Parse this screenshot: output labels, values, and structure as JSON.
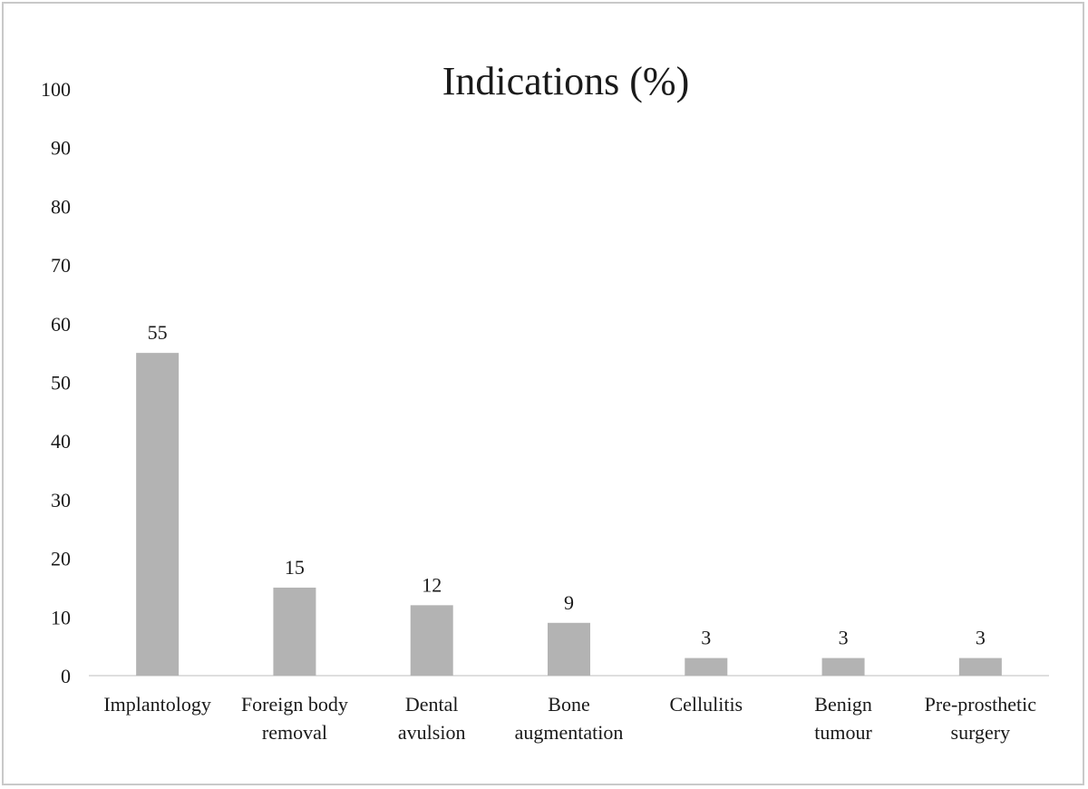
{
  "chart_data": {
    "type": "bar",
    "title": "Indications (%)",
    "xlabel": "",
    "ylabel": "",
    "ylim": [
      0,
      100
    ],
    "yticks": [
      0,
      10,
      20,
      30,
      40,
      50,
      60,
      70,
      80,
      90,
      100
    ],
    "categories": [
      [
        "Implantology"
      ],
      [
        "Foreign body",
        "removal"
      ],
      [
        "Dental",
        "avulsion"
      ],
      [
        "Bone",
        "augmentation"
      ],
      [
        "Cellulitis"
      ],
      [
        "Benign",
        "tumour"
      ],
      [
        "Pre-prosthetic",
        "surgery"
      ]
    ],
    "values": [
      55,
      15,
      12,
      9,
      3,
      3,
      3
    ],
    "data_labels": [
      "55",
      "15",
      "12",
      "9",
      "3",
      "3",
      "3"
    ],
    "bar_color": "#b3b3b3",
    "grid": false,
    "legend": "none"
  }
}
